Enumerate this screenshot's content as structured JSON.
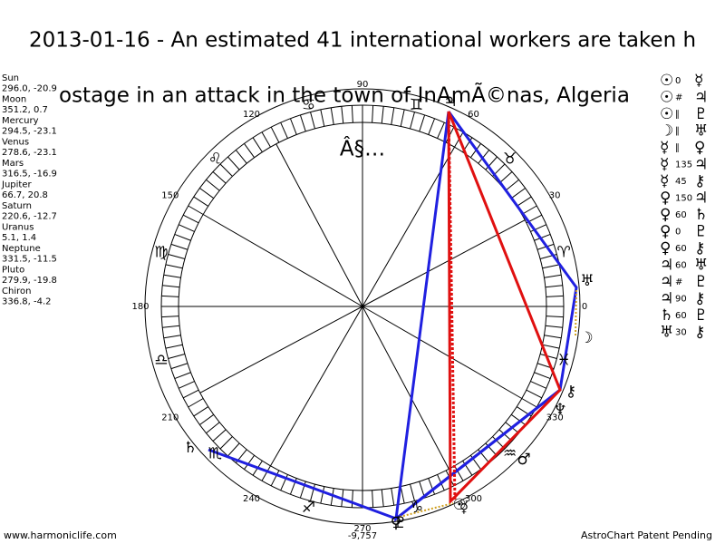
{
  "header": {
    "title_line1": "2013-01-16 - An estimated 41 international workers are taken h",
    "title_line2": "ostage in an attack in the town of InAmÃ©nas, Algeria",
    "title_line3": "Â§…"
  },
  "planets": [
    {
      "name": "Sun",
      "coords": "296.0, -20.9",
      "glyph": "☉"
    },
    {
      "name": "Moon",
      "coords": "351.2, 0.7",
      "glyph": "☽"
    },
    {
      "name": "Mercury",
      "coords": "294.5, -23.1",
      "glyph": "☿"
    },
    {
      "name": "Venus",
      "coords": "278.6, -23.1",
      "glyph": "♀"
    },
    {
      "name": "Mars",
      "coords": "316.5, -16.9",
      "glyph": "♂"
    },
    {
      "name": "Jupiter",
      "coords": "66.7, 20.8",
      "glyph": "♃"
    },
    {
      "name": "Saturn",
      "coords": "220.6, -12.7",
      "glyph": "♄"
    },
    {
      "name": "Uranus",
      "coords": "5.1, 1.4",
      "glyph": "♅"
    },
    {
      "name": "Neptune",
      "coords": "331.5, -11.5",
      "glyph": "♆"
    },
    {
      "name": "Pluto",
      "coords": "279.9, -19.8",
      "glyph": "♇"
    },
    {
      "name": "Chiron",
      "coords": "336.8, -4.2",
      "glyph": "⚷"
    }
  ],
  "degree_labels": [
    "0",
    "30",
    "60",
    "90",
    "120",
    "150",
    "180",
    "210",
    "240",
    "270",
    "300",
    "330"
  ],
  "bottom_value": "-9,757",
  "zodiac": [
    "♈",
    "♉",
    "♊",
    "♋",
    "♌",
    "♍",
    "♎",
    "♏",
    "♐",
    "♑",
    "♒",
    "♓"
  ],
  "aspects": [
    [
      "☉",
      "0",
      "☿"
    ],
    [
      "☉",
      "#",
      "♃"
    ],
    [
      "☉",
      "∥",
      "♇"
    ],
    [
      "☽",
      "∥",
      "♅"
    ],
    [
      "☿",
      "∥",
      "♀"
    ],
    [
      "☿",
      "135",
      "♃"
    ],
    [
      "☿",
      "45",
      "⚷"
    ],
    [
      "♀",
      "150",
      "♃"
    ],
    [
      "♀",
      "60",
      "♄"
    ],
    [
      "♀",
      "0",
      "♇"
    ],
    [
      "♀",
      "60",
      "⚷"
    ],
    [
      "♃",
      "60",
      "♅"
    ],
    [
      "♃",
      "#",
      "♇"
    ],
    [
      "♃",
      "90",
      "⚷"
    ],
    [
      "♄",
      "60",
      "♇"
    ],
    [
      "♅",
      "30",
      "⚷"
    ]
  ],
  "footer": {
    "left": "www.harmoniclife.com",
    "right": "AstroChart Patent Pending"
  }
}
